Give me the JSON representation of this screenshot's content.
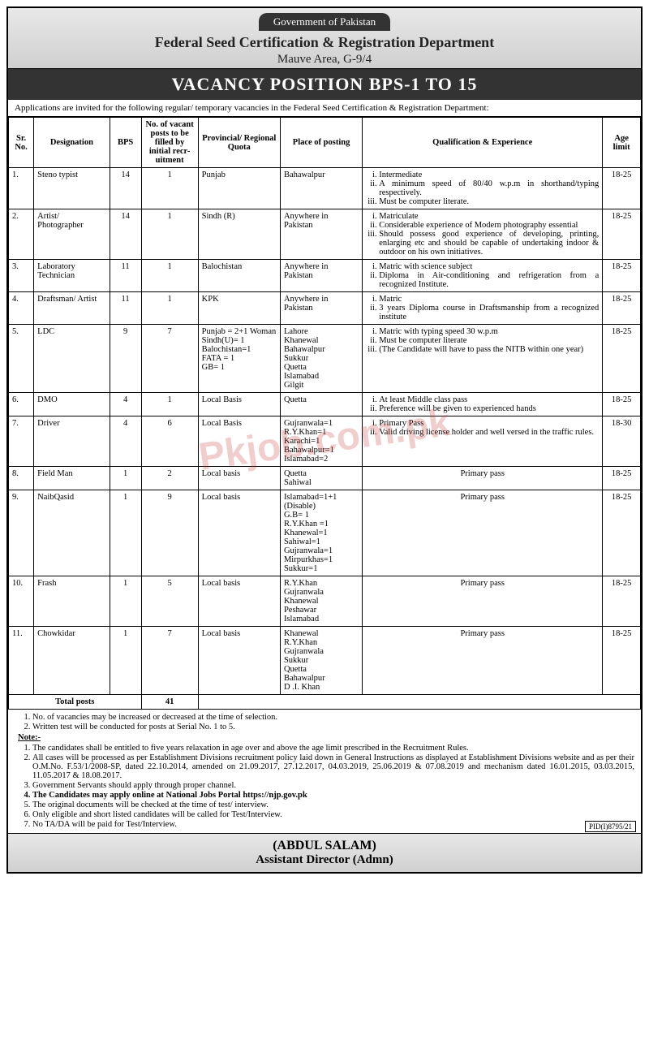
{
  "header": {
    "govt": "Government of Pakistan",
    "dept": "Federal Seed Certification & Registration Department",
    "addr": "Mauve Area, G-9/4"
  },
  "banner": "VACANCY POSITION BPS-1 TO 15",
  "intro": "Applications are invited for the following regular/ temporary vacancies in the Federal Seed Certification &    Registration Department:",
  "columns": [
    "Sr. No.",
    "Designation",
    "BPS",
    "No. of vacant posts to be filled by initial recr-uitment",
    "Provincial/ Regional Quota",
    "Place of posting",
    "Qualification & Experience",
    "Age limit"
  ],
  "rows": [
    {
      "sr": "1.",
      "des": "Steno typist",
      "bps": "14",
      "posts": "1",
      "quota": "Punjab",
      "place": "Bahawalpur",
      "qual": [
        "Intermediate",
        "A minimum speed of 80/40 w.p.m in shorthand/typing respectively.",
        "Must be computer literate."
      ],
      "age": "18-25"
    },
    {
      "sr": "2.",
      "des": "Artist/ Photographer",
      "bps": "14",
      "posts": "1",
      "quota": "Sindh (R)",
      "place": "Anywhere in Pakistan",
      "qual": [
        "Matriculate",
        "Considerable experience of Modern photography essential",
        "Should possess good experience of developing, printing, enlarging etc and should be capable of undertaking indoor & outdoor on his own initiatives."
      ],
      "age": "18-25"
    },
    {
      "sr": "3.",
      "des": "Laboratory Technician",
      "bps": "11",
      "posts": "1",
      "quota": "Balochistan",
      "place": "Anywhere in Pakistan",
      "qual": [
        "Matric with science subject",
        "Diploma in Air-conditioning and refrigeration from a recognized Institute."
      ],
      "age": "18-25"
    },
    {
      "sr": "4.",
      "des": "Draftsman/ Artist",
      "bps": "11",
      "posts": "1",
      "quota": "KPK",
      "place": "Anywhere in Pakistan",
      "qual": [
        "Matric",
        "3 years Diploma course in Draftsmanship from a recognized institute"
      ],
      "age": "18-25"
    },
    {
      "sr": "5.",
      "des": "LDC",
      "bps": "9",
      "posts": "7",
      "quota": "Punjab = 2+1 Woman\nSindh(U)= 1\nBalochistan=1\nFATA = 1\nGB= 1",
      "place": "Lahore\nKhanewal\nBahawalpur\nSukkur\nQuetta\nIslamabad\nGilgit",
      "qual": [
        "Matric with typing speed 30 w.p.m",
        "Must be computer literate",
        "(The Candidate will have to pass the NITB within one year)"
      ],
      "age": "18-25"
    },
    {
      "sr": "6.",
      "des": "DMO",
      "bps": "4",
      "posts": "1",
      "quota": "Local Basis",
      "place": "Quetta",
      "qual": [
        "At least Middle class pass",
        "Preference will be given to experienced hands"
      ],
      "age": "18-25"
    },
    {
      "sr": "7.",
      "des": "Driver",
      "bps": "4",
      "posts": "6",
      "quota": "Local Basis",
      "place": "Gujranwala=1\nR.Y.Khan=1\nKarachi=1\nBahawalpur=1\nIslamabad=2",
      "qual": [
        "Primary Pass",
        "Valid driving license holder and well versed in the traffic rules."
      ],
      "age": "18-30"
    },
    {
      "sr": "8.",
      "des": "Field Man",
      "bps": "1",
      "posts": "2",
      "quota": "Local basis",
      "place": "Quetta\nSahiwal",
      "qual_plain": "Primary pass",
      "age": "18-25"
    },
    {
      "sr": "9.",
      "des": "NaibQasid",
      "bps": "1",
      "posts": "9",
      "quota": "Local basis",
      "place": "Islamabad=1+1 (Disable)\nG.B= 1\nR.Y.Khan =1\nKhanewal=1\nSahiwal=1\nGujranwala=1\nMirpurkhas=1\nSukkur=1",
      "qual_plain": "Primary pass",
      "age": "18-25"
    },
    {
      "sr": "10.",
      "des": "Frash",
      "bps": "1",
      "posts": "5",
      "quota": "Local basis",
      "place": "R.Y.Khan\nGujranwala\nKhanewal\nPeshawar\nIslamabad",
      "qual_plain": "Primary pass",
      "age": "18-25"
    },
    {
      "sr": "11.",
      "des": "Chowkidar",
      "bps": "1",
      "posts": "7",
      "quota": "Local basis",
      "place": "Khanewal\nR.Y.Khan\nGujranwala\nSukkur\nQuetta\nBahawalpur\nD .I. Khan",
      "qual_plain": "Primary pass",
      "age": "18-25"
    }
  ],
  "total_label": "Total posts",
  "total_value": "41",
  "notes_top": [
    "No. of vacancies may be increased or decreased at the time of selection.",
    "Written test will be conducted for posts at Serial No. 1 to 5."
  ],
  "note_label": "Note:-",
  "notes_bottom": [
    "The candidates shall be entitled to five years relaxation in age over and above the age limit prescribed in the Recruitment Rules.",
    "All cases will be processed as per Establishment Divisions recruitment policy laid down in General Instructions as displayed at Establishment Divisions website and as per their O.M.No. F.53/1/2008-SP, dated 22.10.2014, amended on 21.09.2017, 27.12.2017, 04.03.2019, 25.06.2019 & 07.08.2019 and mechanism dated 16.01.2015, 03.03.2015, 11.05.2017 & 18.08.2017.",
    "Government Servants should apply through proper channel.",
    "The Candidates may apply online at National Jobs Portal https://njp.gov.pk",
    "The original documents will be checked at the time of test/ interview.",
    "Only eligible and short listed candidates will be called for Test/Interview.",
    "No TA/DA will be paid for Test/Interview."
  ],
  "note_bold_index": 3,
  "footer": {
    "name": "(ABDUL SALAM)",
    "title": "Assistant Director (Admn)",
    "pid": "PID(I)8795/21"
  },
  "watermark": "Pkjob.com.pk"
}
